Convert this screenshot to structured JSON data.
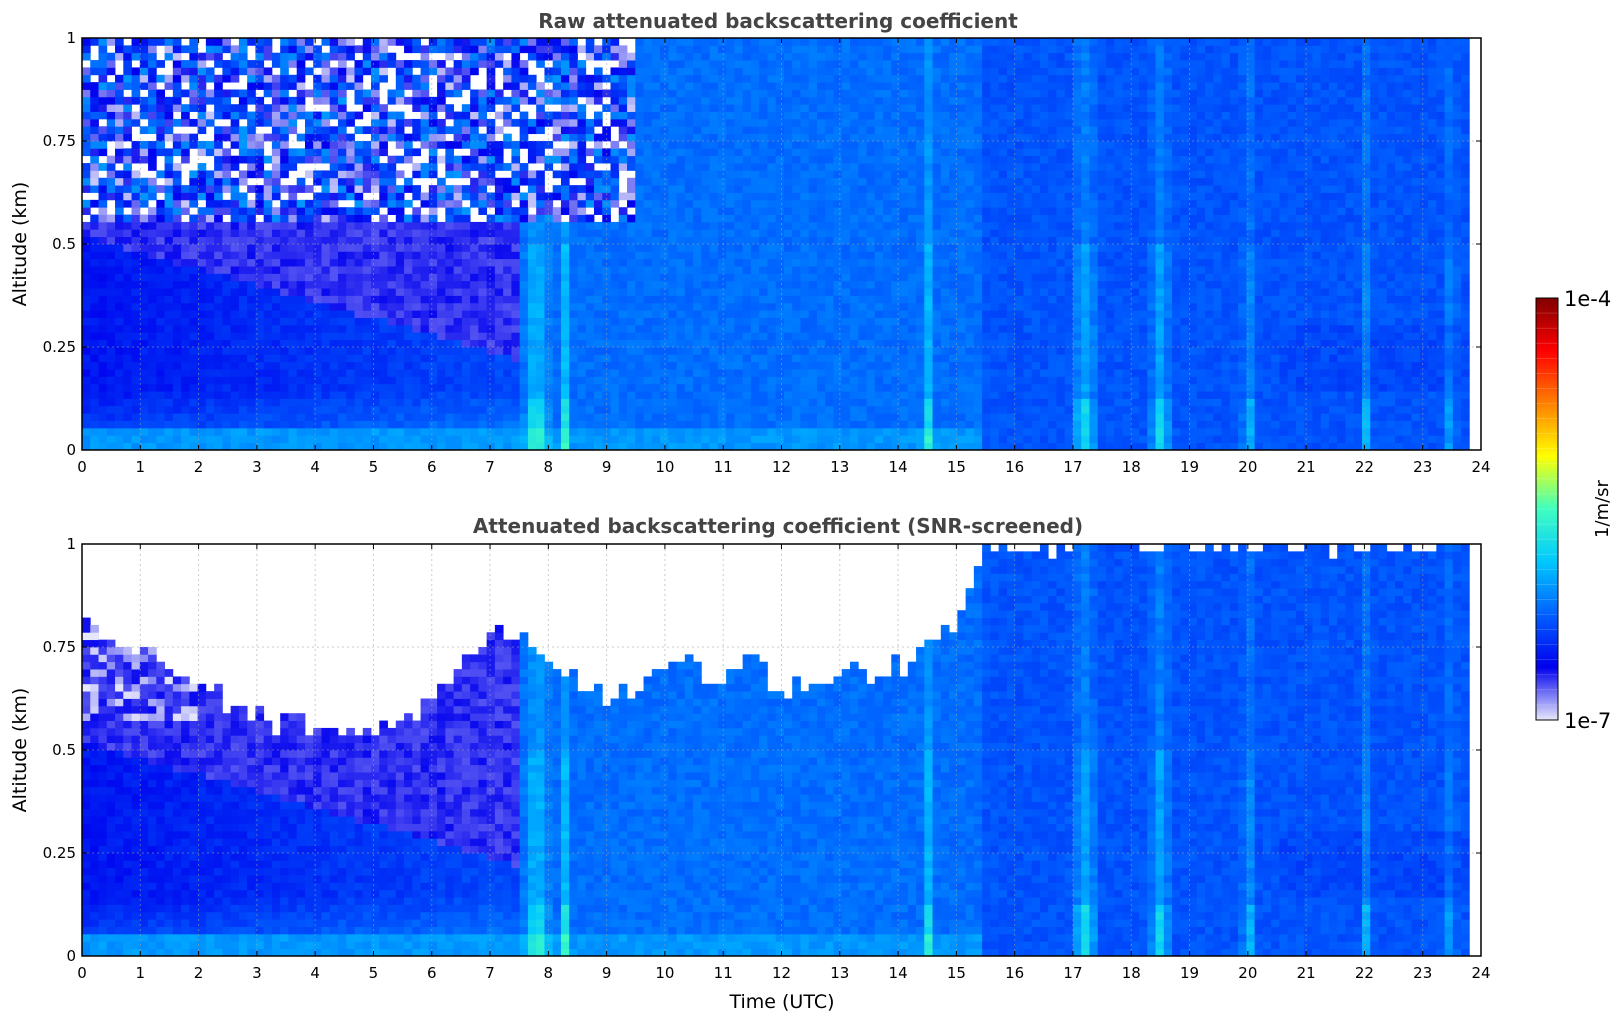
{
  "figure": {
    "x_axis_label": "Time (UTC)",
    "y_axis_label": "Altitude (km)"
  },
  "colorbar": {
    "label": "1/m/sr",
    "top_label": "1e-4",
    "bottom_label": "1e-7",
    "scale": "log",
    "range": [
      1e-07,
      0.0001
    ],
    "colormap": [
      "#e8e8fb",
      "#0000ee",
      "#0060ff",
      "#00c8ff",
      "#40ffc0",
      "#ffff00",
      "#ff8000",
      "#ff0000",
      "#800000"
    ]
  },
  "chart_data": [
    {
      "type": "heatmap",
      "title": "Raw attenuated backscattering coefficient",
      "xlabel": "",
      "ylabel": "Altitude (km)",
      "xlim": [
        0,
        24
      ],
      "ylim": [
        0,
        1
      ],
      "x_ticks": [
        "0",
        "1",
        "2",
        "3",
        "4",
        "5",
        "6",
        "7",
        "8",
        "9",
        "10",
        "11",
        "12",
        "13",
        "14",
        "15",
        "16",
        "17",
        "18",
        "19",
        "20",
        "21",
        "22",
        "23",
        "24"
      ],
      "y_ticks": [
        "0",
        "0.25",
        "0.5",
        "0.75",
        "1"
      ],
      "data_end_hour": 23.8,
      "grid": true,
      "color_scale": "log10",
      "zlim": [
        1e-07,
        0.0001
      ],
      "features": [
        {
          "description": "dark blue near-surface layer, 0-0.5 km, hours 0-6",
          "log10_value": -6.5
        },
        {
          "description": "enhanced vertical plumes",
          "hours": [
            7.8,
            8.3,
            14.5,
            17.2,
            18.5,
            20.0,
            22.0,
            23.5
          ],
          "log10_value": -5.9
        },
        {
          "description": "noisy speckle above 0.6 km, hours 0-9",
          "log10_value": -6.8
        }
      ]
    },
    {
      "type": "heatmap",
      "title": "Attenuated backscattering coefficient (SNR-screened)",
      "xlabel": "Time (UTC)",
      "ylabel": "Altitude (km)",
      "xlim": [
        0,
        24
      ],
      "ylim": [
        0,
        1
      ],
      "x_ticks": [
        "0",
        "1",
        "2",
        "3",
        "4",
        "5",
        "6",
        "7",
        "8",
        "9",
        "10",
        "11",
        "12",
        "13",
        "14",
        "15",
        "16",
        "17",
        "18",
        "19",
        "20",
        "21",
        "22",
        "23",
        "24"
      ],
      "y_ticks": [
        "0",
        "0.25",
        "0.5",
        "0.75",
        "1"
      ],
      "data_end_hour": 23.8,
      "grid": true,
      "color_scale": "log10",
      "zlim": [
        1e-07,
        0.0001
      ],
      "screened_top_km": [
        [
          0,
          0.8
        ],
        [
          1,
          0.75
        ],
        [
          2,
          0.66
        ],
        [
          3,
          0.58
        ],
        [
          4,
          0.55
        ],
        [
          5,
          0.54
        ],
        [
          5.5,
          0.56
        ],
        [
          6,
          0.64
        ],
        [
          6.5,
          0.7
        ],
        [
          7,
          0.78
        ],
        [
          7.5,
          0.78
        ],
        [
          8,
          0.72
        ],
        [
          8.5,
          0.66
        ],
        [
          9,
          0.62
        ],
        [
          9.5,
          0.65
        ],
        [
          10,
          0.72
        ],
        [
          10.5,
          0.7
        ],
        [
          11,
          0.67
        ],
        [
          11.5,
          0.72
        ],
        [
          12,
          0.64
        ],
        [
          12.5,
          0.68
        ],
        [
          13,
          0.7
        ],
        [
          13.5,
          0.66
        ],
        [
          14,
          0.7
        ],
        [
          14.5,
          0.75
        ],
        [
          15,
          0.82
        ],
        [
          15.5,
          1.0
        ],
        [
          16,
          1.0
        ],
        [
          23.8,
          1.0
        ]
      ]
    }
  ]
}
